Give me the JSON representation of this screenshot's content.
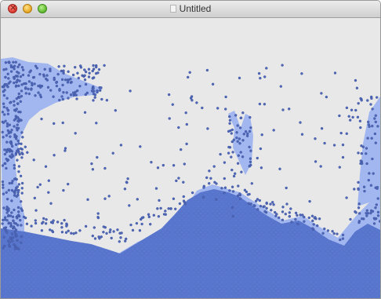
{
  "window": {
    "title": "Untitled"
  },
  "colors": {
    "canvas_background": "#e8e8e8",
    "water_fill": "#5b78d0",
    "water_glow": "#95aef0",
    "particle": "#5067b8",
    "particle_outline": "#39509c"
  },
  "icons": [
    "close-icon",
    "minimize-icon",
    "zoom-icon",
    "document-icon"
  ]
}
